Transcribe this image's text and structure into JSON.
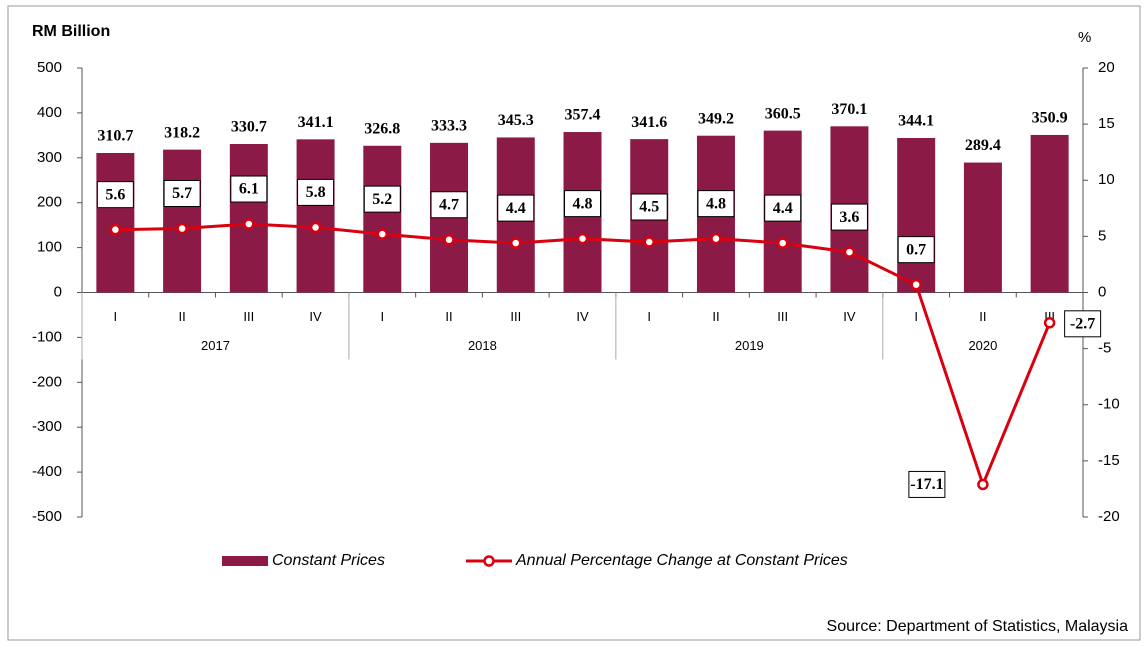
{
  "chart_data": {
    "type": "bar",
    "title": "RM Billion",
    "y2_label": "%",
    "source": "Source: Department of Statistics, Malaysia",
    "groups": [
      {
        "label": "2017",
        "categories": [
          "I",
          "II",
          "III",
          "IV"
        ]
      },
      {
        "label": "2018",
        "categories": [
          "I",
          "II",
          "III",
          "IV"
        ]
      },
      {
        "label": "2019",
        "categories": [
          "I",
          "II",
          "III",
          "IV"
        ]
      },
      {
        "label": "2020",
        "categories": [
          "I",
          "II",
          "III"
        ]
      }
    ],
    "series": [
      {
        "name": "Constant Prices",
        "type": "bar",
        "color": "#8b1a47",
        "values": [
          310.7,
          318.2,
          330.7,
          341.1,
          326.8,
          333.3,
          345.3,
          357.4,
          341.6,
          349.2,
          360.5,
          370.1,
          344.1,
          289.4,
          350.9
        ]
      },
      {
        "name": "Annual Percentage Change at Constant Prices",
        "type": "line",
        "axis": "y2",
        "color": "#d9000f",
        "values": [
          5.6,
          5.7,
          6.1,
          5.8,
          5.2,
          4.7,
          4.4,
          4.8,
          4.5,
          4.8,
          4.4,
          3.6,
          0.7,
          -17.1,
          -2.7
        ]
      }
    ],
    "ylim": [
      -500,
      500
    ],
    "yticks": [
      -500,
      -400,
      -300,
      -200,
      -100,
      0,
      100,
      200,
      300,
      400,
      500
    ],
    "y2lim": [
      -20,
      20
    ],
    "y2ticks": [
      -20,
      -15,
      -10,
      -5,
      0,
      5,
      10,
      15,
      20
    ]
  }
}
